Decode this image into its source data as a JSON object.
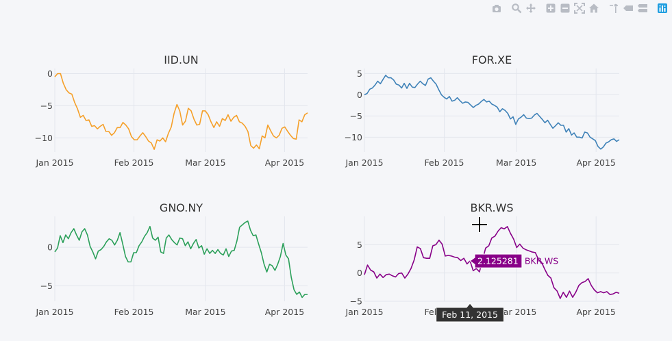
{
  "colors": {
    "background": "#f5f6f9",
    "grid": "#e3e6ed",
    "tick_text": "#444444",
    "title_text": "#333333",
    "modebar_icon": "#b8bcc4",
    "modebar_active": "#1f9ee0",
    "tooltip_bg": "#880088",
    "xtooltip_bg": "#333333"
  },
  "modebar": [
    {
      "icon": "camera-icon",
      "label": "Download plot as a png"
    },
    {
      "icon": "zoom-icon",
      "label": "Zoom"
    },
    {
      "icon": "pan-icon",
      "label": "Pan"
    },
    {
      "icon": "zoom-in-icon",
      "label": "Zoom in"
    },
    {
      "icon": "zoom-out-icon",
      "label": "Zoom out"
    },
    {
      "icon": "autoscale-icon",
      "label": "Autoscale"
    },
    {
      "icon": "home-icon",
      "label": "Reset axes"
    },
    {
      "icon": "spike-icon",
      "label": "Toggle Spike Lines"
    },
    {
      "icon": "hover-closest-icon",
      "label": "Show closest data on hover"
    },
    {
      "icon": "hover-compare-icon",
      "label": "Compare data on hover"
    },
    {
      "icon": "plotly-logo-icon",
      "label": "Produced with Plotly"
    }
  ],
  "x_ticks": [
    "Jan 2015",
    "Feb 2015",
    "Mar 2015",
    "Apr 2015"
  ],
  "x_tick_dates": [
    "2015-01-01",
    "2015-02-01",
    "2015-03-01",
    "2015-04-01"
  ],
  "chart_data": [
    {
      "type": "line",
      "title": "IID.UN",
      "color": "#f5a02a",
      "x_start": "2015-01-01",
      "x_end": "2015-04-10",
      "ylim": [
        -12.2,
        0.8
      ],
      "yticks": [
        0,
        -5,
        -10
      ],
      "series": [
        {
          "name": "IID.UN",
          "values": [
            -0.5,
            0,
            0,
            -1.5,
            -2.5,
            -3,
            -3.2,
            -4.5,
            -5.5,
            -6.8,
            -6.5,
            -7.3,
            -7.2,
            -8.2,
            -8.1,
            -8.6,
            -8.2,
            -7.9,
            -9,
            -9,
            -9.6,
            -9.2,
            -8.4,
            -8.4,
            -7.6,
            -8,
            -8.6,
            -9.8,
            -10.3,
            -10.3,
            -9.7,
            -9.2,
            -9.8,
            -10.5,
            -10.8,
            -11.8,
            -10.3,
            -10.5,
            -10,
            -10.6,
            -9.3,
            -8.3,
            -6.2,
            -4.8,
            -5.8,
            -8,
            -7.4,
            -5.4,
            -5.8,
            -7.1,
            -8,
            -7.9,
            -5.8,
            -5.8,
            -6.4,
            -7.5,
            -8.4,
            -7.5,
            -8.2,
            -7,
            -7.3,
            -6.4,
            -7.4,
            -6.8,
            -6.5,
            -7.5,
            -7.7,
            -8.2,
            -9,
            -11.2,
            -11.6,
            -11.1,
            -11.7,
            -9.7,
            -10,
            -8,
            -8.9,
            -9.7,
            -10,
            -9.6,
            -8.5,
            -8.3,
            -9,
            -9.6,
            -10.1,
            -10.2,
            -7.2,
            -7.5,
            -6.4,
            -6.1
          ]
        }
      ]
    },
    {
      "type": "line",
      "title": "FOR.XE",
      "color": "#3f82b8",
      "x_start": "2015-01-01",
      "x_end": "2015-04-10",
      "ylim": [
        -13.5,
        6.2
      ],
      "yticks": [
        5,
        0,
        -5,
        -10
      ],
      "series": [
        {
          "name": "FOR.XE",
          "values": [
            0,
            0.3,
            1.3,
            1.6,
            2.3,
            3.2,
            2.6,
            3.6,
            4.6,
            4,
            4,
            3.5,
            2.5,
            2.3,
            1.6,
            2.7,
            1.5,
            2.7,
            1.8,
            1.7,
            2.5,
            3.2,
            2.6,
            2.2,
            3.7,
            4,
            3.2,
            2.5,
            1.2,
            0,
            -0.6,
            -1,
            -0.4,
            -1.5,
            -1.3,
            -0.7,
            -1.4,
            -2,
            -1.7,
            -1.8,
            -2.4,
            -3,
            -2.5,
            -2.2,
            -1.6,
            -1.1,
            -1.7,
            -1.5,
            -2.2,
            -2.5,
            -2.9,
            -4,
            -3.3,
            -3.7,
            -4.4,
            -5.7,
            -5.2,
            -7,
            -5.7,
            -5.3,
            -4.7,
            -5.5,
            -5.6,
            -5.5,
            -4.8,
            -4.4,
            -5.1,
            -5.8,
            -6.6,
            -6,
            -7,
            -7.9,
            -7.3,
            -6.6,
            -7.2,
            -7.2,
            -8.8,
            -8,
            -9.5,
            -9,
            -10,
            -10,
            -10.2,
            -8.8,
            -9,
            -10,
            -10.4,
            -10.8,
            -12.2,
            -12.8,
            -12.3,
            -11.4,
            -11.1,
            -10.6,
            -10.4,
            -11,
            -10.6
          ]
        }
      ]
    },
    {
      "type": "line",
      "title": "GNO.NY",
      "color": "#2ca05a",
      "x_start": "2015-01-01",
      "x_end": "2015-04-10",
      "ylim": [
        -7,
        4
      ],
      "yticks": [
        0,
        -5
      ],
      "series": [
        {
          "name": "GNO.NY",
          "values": [
            -0.6,
            -0.1,
            1.5,
            0.6,
            1.6,
            1.1,
            1.9,
            2.4,
            1.6,
            0.9,
            2,
            2.4,
            1.6,
            0.1,
            -0.6,
            -1.5,
            -0.5,
            -0.3,
            0.1,
            0.7,
            1.1,
            0.9,
            0.3,
            0.9,
            1.9,
            0.4,
            -1.2,
            -1.9,
            -1.9,
            -0.7,
            -0.7,
            0.2,
            0.7,
            1.4,
            1.9,
            2.7,
            1.2,
            0.9,
            1.3,
            -0.6,
            -0.8,
            1.2,
            1.6,
            1,
            0.6,
            0.3,
            1.2,
            1.1,
            0.2,
            0.7,
            -0.2,
            0.5,
            1,
            -0.1,
            0.2,
            -0.9,
            -0.2,
            -0.8,
            -0.4,
            -0.8,
            -0.3,
            -0.8,
            -1,
            -0.2,
            -1.2,
            -0.5,
            -0.4,
            0.8,
            2.6,
            2.9,
            3.2,
            3.4,
            2.2,
            1.5,
            1.6,
            0.4,
            -0.7,
            -2.2,
            -3.2,
            -2.2,
            -2.4,
            -3,
            -2.2,
            -1.2,
            0.5,
            -1,
            -1.5,
            -3.9,
            -5.5,
            -6.1,
            -5.8,
            -6.5,
            -6.1,
            -6.1
          ]
        }
      ]
    },
    {
      "type": "line",
      "title": "BKR.WS",
      "color": "#880088",
      "x_start": "2015-01-01",
      "x_end": "2015-04-10",
      "ylim": [
        -5,
        10
      ],
      "yticks": [
        5,
        0,
        -5
      ],
      "series": [
        {
          "name": "BKR.WS",
          "values": [
            -0.3,
            1.4,
            0.5,
            0.2,
            -0.9,
            -0.2,
            -0.8,
            -0.3,
            -0.2,
            -0.5,
            -0.7,
            -0.1,
            0,
            -0.9,
            -0.2,
            0.8,
            2.3,
            4.6,
            4.3,
            2.7,
            2.6,
            2.6,
            4.8,
            5,
            5.8,
            5.1,
            3,
            3.1,
            3,
            2.8,
            2.7,
            2.2,
            2.6,
            1.6,
            2.125,
            0.4,
            0.8,
            0.2,
            2.3,
            4.4,
            4.8,
            6.2,
            6.5,
            7.4,
            8,
            7.8,
            8.2,
            7,
            6,
            4.5,
            5.1,
            4.4,
            4.1,
            3.9,
            3.7,
            3.6,
            2.4,
            1.9,
            0.7,
            -0.4,
            -0.9,
            -2.6,
            -3.2,
            -4.5,
            -3.4,
            -4.3,
            -3.2,
            -4.3,
            -3.4,
            -2.2,
            -1.7,
            -1.5,
            -1,
            -2.2,
            -3,
            -3.5,
            -3.3,
            -3.5,
            -3.3,
            -3.8,
            -3.7,
            -3.4,
            -3.6
          ]
        }
      ]
    }
  ],
  "hover": {
    "value_label": "2.125281",
    "trace_label": "BKR.WS",
    "x_label": "Feb 11, 2015",
    "panel": 3,
    "x_date": "2015-02-11",
    "y_value": 2.125281
  }
}
